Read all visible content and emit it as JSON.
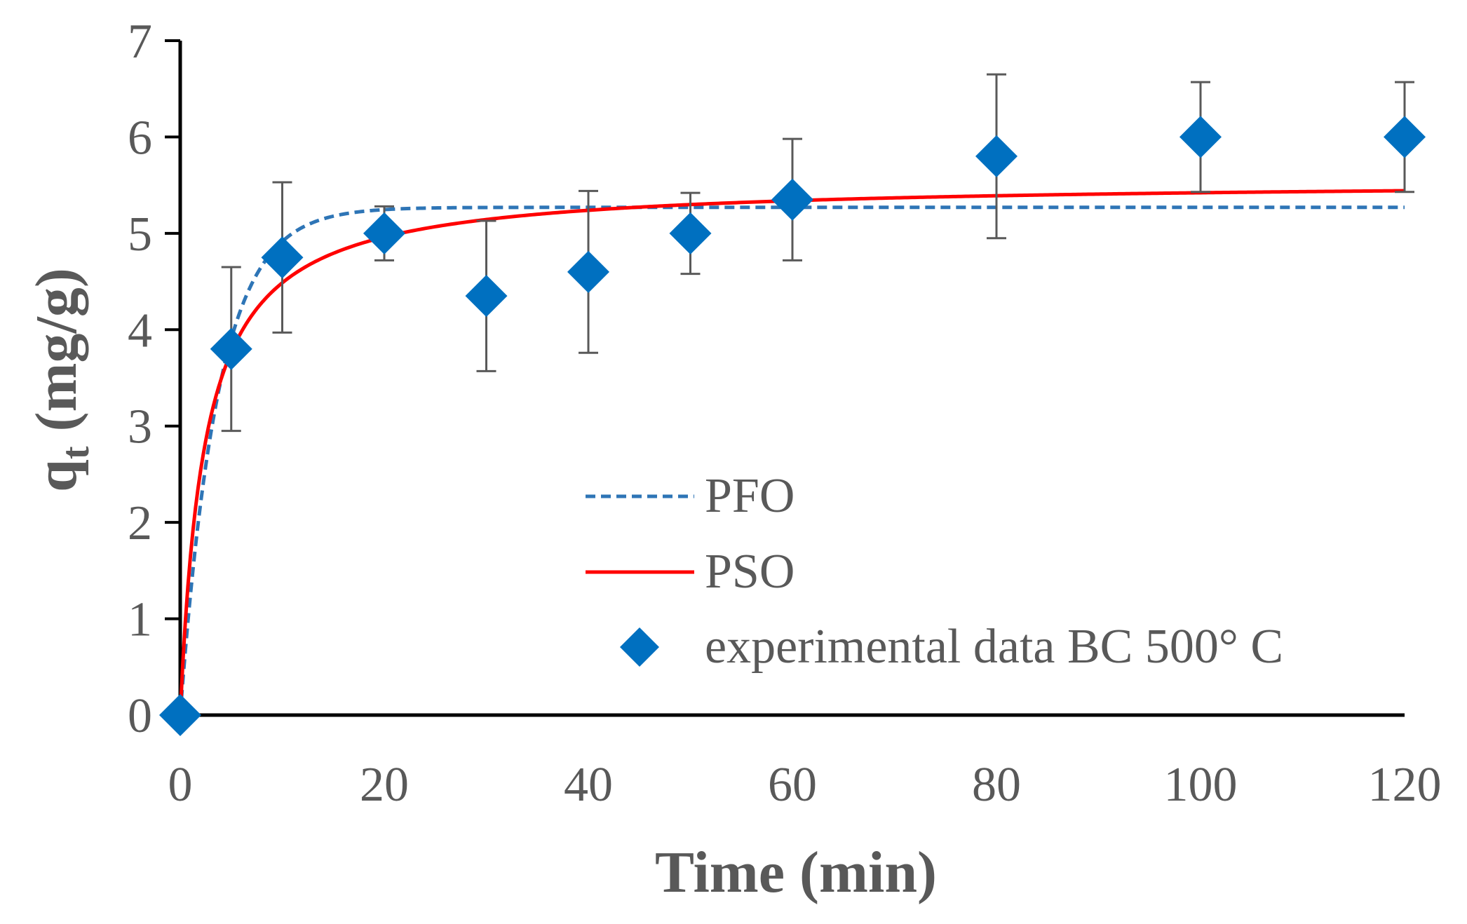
{
  "chart_data": {
    "type": "scatter",
    "xlabel": "Time (min)",
    "ylabel_main": "q",
    "ylabel_sub": "t",
    "ylabel_unit": " (mg/g)",
    "xlim": [
      0,
      120
    ],
    "ylim": [
      0,
      7
    ],
    "x_ticks": [
      0,
      20,
      40,
      60,
      80,
      100,
      120
    ],
    "y_ticks": [
      0,
      1,
      2,
      3,
      4,
      5,
      6,
      7
    ],
    "grid": false,
    "legend_position": "bottom-right",
    "series": [
      {
        "name": "PFO",
        "kind": "line",
        "style": "dashed",
        "color": "#2e75b6",
        "model": "pfo",
        "qe": 5.27,
        "k1": 0.27
      },
      {
        "name": "PSO",
        "kind": "line",
        "style": "solid",
        "color": "#ff0000",
        "model": "pso",
        "qe": 5.55,
        "k2": 0.076
      },
      {
        "name": "experimental data BC 500° C",
        "kind": "scatter",
        "marker": "diamond",
        "color": "#0070c0",
        "points": [
          {
            "x": 0,
            "y": 0,
            "err": 0
          },
          {
            "x": 5,
            "y": 3.8,
            "err": 0.85
          },
          {
            "x": 10,
            "y": 4.75,
            "err": 0.78
          },
          {
            "x": 20,
            "y": 5.0,
            "err": 0.28
          },
          {
            "x": 30,
            "y": 4.35,
            "err": 0.78
          },
          {
            "x": 40,
            "y": 4.6,
            "err": 0.84
          },
          {
            "x": 50,
            "y": 5.0,
            "err": 0.42
          },
          {
            "x": 60,
            "y": 5.35,
            "err": 0.63
          },
          {
            "x": 80,
            "y": 5.8,
            "err": 0.85
          },
          {
            "x": 100,
            "y": 6.0,
            "err": 0.57
          },
          {
            "x": 120,
            "y": 6.0,
            "err": 0.57
          }
        ]
      }
    ]
  },
  "colors": {
    "axis": "#000000",
    "text": "#595959",
    "errorbar": "#595959"
  }
}
